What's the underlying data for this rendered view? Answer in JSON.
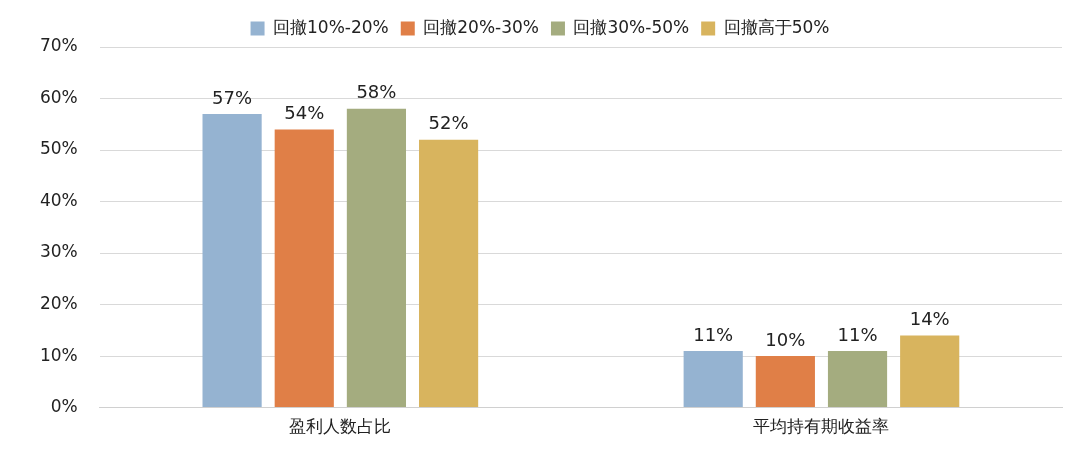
{
  "chart_data": {
    "type": "bar",
    "categories": [
      "盈利人数占比",
      "平均持有期收益率"
    ],
    "series": [
      {
        "name": "回撤10%-20%",
        "color": "#95b3d1",
        "values": [
          57,
          11
        ],
        "value_labels": [
          "57%",
          "11%"
        ]
      },
      {
        "name": "回撤20%-30%",
        "color": "#e07f47",
        "values": [
          54,
          10
        ],
        "value_labels": [
          "54%",
          "10%"
        ]
      },
      {
        "name": "回撤30%-50%",
        "color": "#a4ac7f",
        "values": [
          58,
          11
        ],
        "value_labels": [
          "58%",
          "11%"
        ]
      },
      {
        "name": "回撤高于50%",
        "color": "#d8b45e",
        "values": [
          52,
          14
        ],
        "value_labels": [
          "52%",
          "14%"
        ]
      }
    ],
    "ylim": [
      0,
      70
    ],
    "yticks": [
      {
        "value": 0,
        "label": "0%"
      },
      {
        "value": 10,
        "label": "10%"
      },
      {
        "value": 20,
        "label": "20%"
      },
      {
        "value": 30,
        "label": "30%"
      },
      {
        "value": 40,
        "label": "40%"
      },
      {
        "value": 50,
        "label": "50%"
      },
      {
        "value": 60,
        "label": "60%"
      },
      {
        "value": 70,
        "label": "70%"
      }
    ],
    "grid": "y",
    "legend": "top"
  }
}
